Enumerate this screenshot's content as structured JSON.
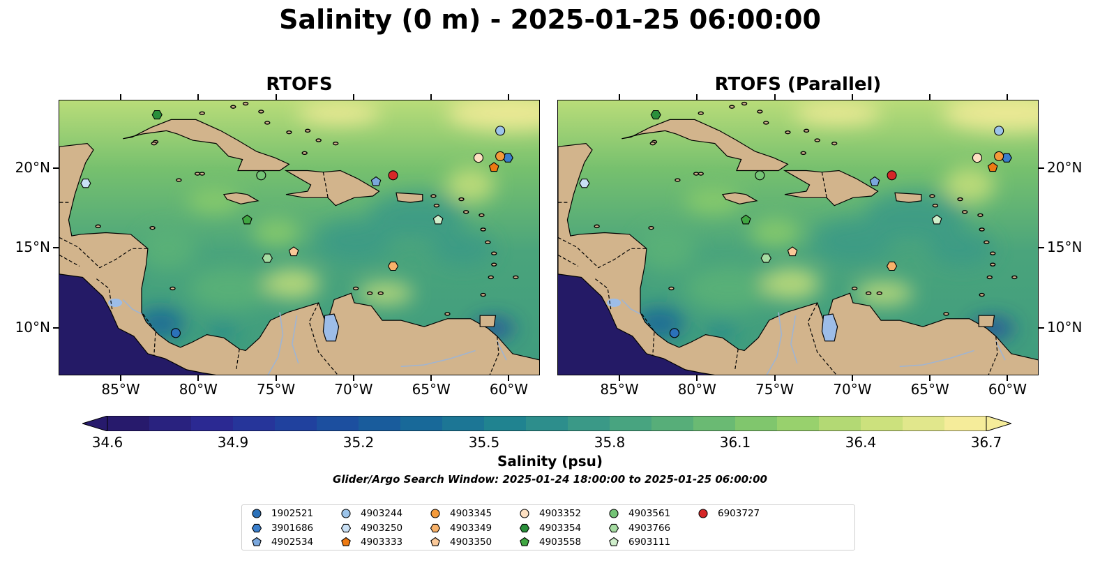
{
  "chart_data": {
    "type": "heatmap",
    "title": "Salinity (0 m) - 2025-01-25 06:00:00",
    "panels": [
      {
        "title": "RTOFS"
      },
      {
        "title": "RTOFS (Parallel)"
      }
    ],
    "x_axis": {
      "range": [
        -89,
        -58
      ],
      "ticks": [
        -85,
        -80,
        -75,
        -70,
        -65,
        -60
      ],
      "tick_labels": [
        "85°W",
        "80°W",
        "75°W",
        "70°W",
        "65°W",
        "60°W"
      ]
    },
    "y_axis": {
      "range": [
        7,
        24.3
      ],
      "ticks": [
        10,
        15,
        20
      ],
      "tick_labels": [
        "10°N",
        "15°N",
        "20°N"
      ]
    },
    "colorbar": {
      "label": "Salinity (psu)",
      "range": [
        34.6,
        36.7
      ],
      "ticks": [
        34.6,
        34.9,
        35.2,
        35.5,
        35.8,
        36.1,
        36.4,
        36.7
      ],
      "tick_labels": [
        "34.6",
        "34.9",
        "35.2",
        "35.5",
        "35.8",
        "36.1",
        "36.4",
        "36.7"
      ],
      "colormap": [
        "#271a6c",
        "#2b2b96",
        "#1d47a0",
        "#17659a",
        "#1f8291",
        "#3b9a86",
        "#5cb277",
        "#8ccd6a",
        "#c8e07a",
        "#f5ec9a"
      ],
      "extend": "both"
    },
    "search_window": "Glider/Argo Search Window: 2025-01-24 18:00:00 to 2025-01-25 06:00:00",
    "series": [
      {
        "name": "1902521",
        "marker": "circle",
        "color": "#2b71b9",
        "lon": -81.5,
        "lat": 9.7
      },
      {
        "name": "3901686",
        "marker": "hexagon",
        "color": "#3b7fcc",
        "lon": -60.1,
        "lat": 20.7
      },
      {
        "name": "4902534",
        "marker": "pentagon",
        "color": "#7aa7dd",
        "lon": -68.6,
        "lat": 19.2
      },
      {
        "name": "4903244",
        "marker": "circle",
        "color": "#9cc4ea",
        "lon": -60.6,
        "lat": 22.4
      },
      {
        "name": "4903250",
        "marker": "hexagon",
        "color": "#c9e0f5",
        "lon": -87.3,
        "lat": 19.1
      },
      {
        "name": "4903333",
        "marker": "pentagon",
        "color": "#ee7a12",
        "lon": -61.0,
        "lat": 20.1
      },
      {
        "name": "4903345",
        "marker": "circle",
        "color": "#f49a3a",
        "lon": -60.6,
        "lat": 20.8
      },
      {
        "name": "4903349",
        "marker": "hexagon",
        "color": "#f8b26a",
        "lon": -67.5,
        "lat": 13.9
      },
      {
        "name": "4903350",
        "marker": "pentagon",
        "color": "#fac898",
        "lon": -73.9,
        "lat": 14.8
      },
      {
        "name": "4903352",
        "marker": "circle",
        "color": "#fde0c2",
        "lon": -62.0,
        "lat": 20.7
      },
      {
        "name": "4903354",
        "marker": "hexagon",
        "color": "#2a8f3b",
        "lon": -82.7,
        "lat": 23.4
      },
      {
        "name": "4903558",
        "marker": "pentagon",
        "color": "#40a642",
        "lon": -76.9,
        "lat": 16.8
      },
      {
        "name": "4903561",
        "marker": "circle",
        "color": "#74c476",
        "lon": -76.0,
        "lat": 19.6
      },
      {
        "name": "4903766",
        "marker": "hexagon",
        "color": "#a6dca2",
        "lon": -75.6,
        "lat": 14.4
      },
      {
        "name": "6903111",
        "marker": "pentagon",
        "color": "#cfeecb",
        "lon": -64.6,
        "lat": 16.8
      },
      {
        "name": "6903727",
        "marker": "circle",
        "color": "#d62728",
        "lon": -67.5,
        "lat": 19.6
      }
    ]
  },
  "colors": {
    "land": "#d2b48c",
    "lake": "#9dbde8",
    "pacific": "#241a66"
  }
}
